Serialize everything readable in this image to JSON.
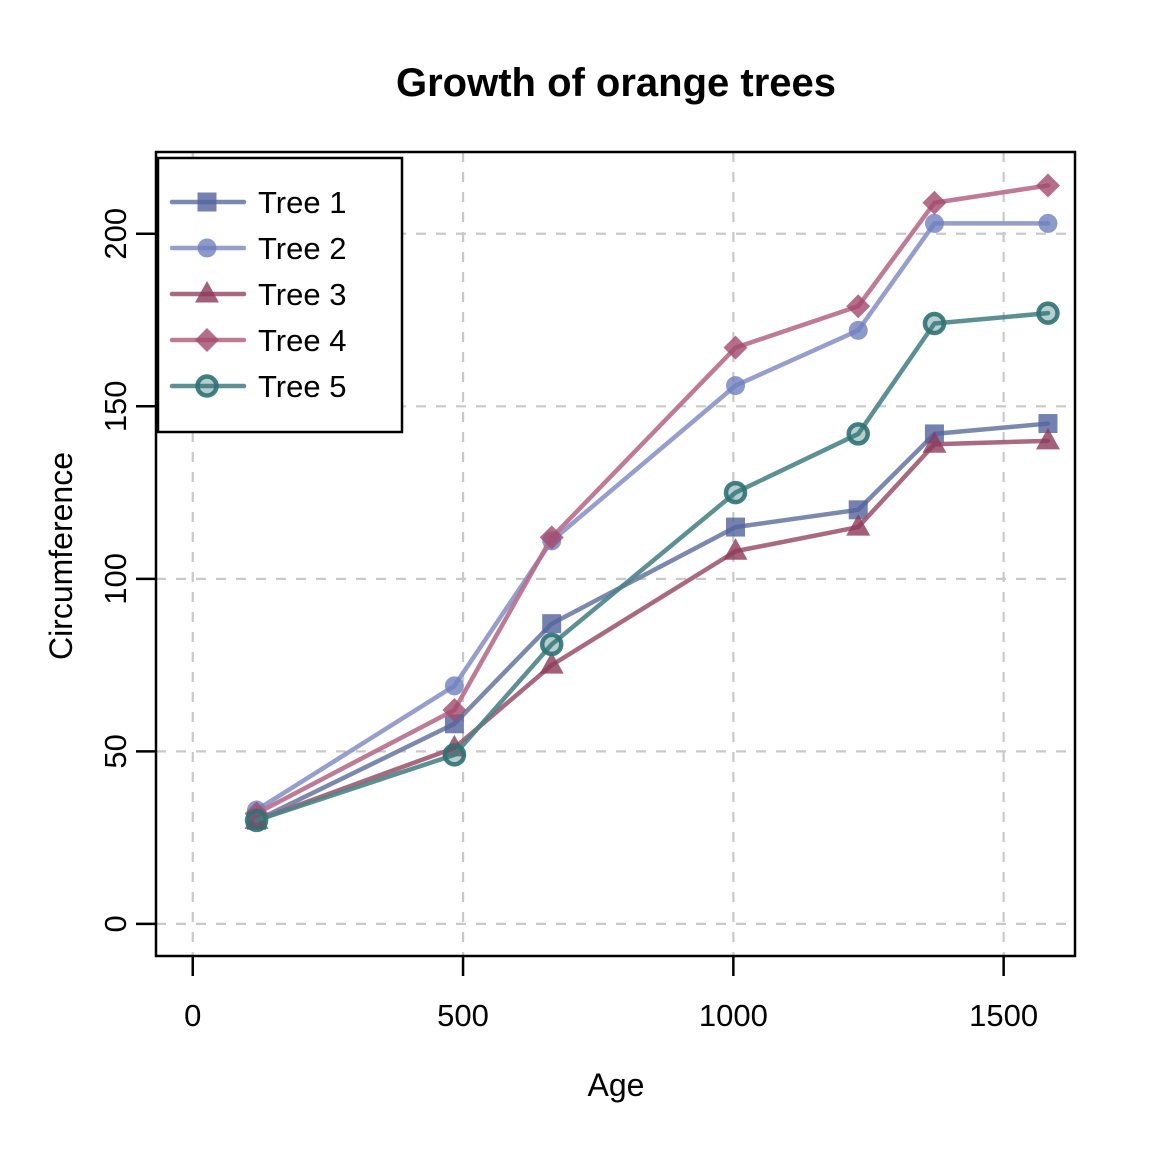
{
  "chart_data": {
    "type": "line",
    "title": "Growth of orange trees",
    "xlabel": "Age",
    "ylabel": "Circumference",
    "x": [
      118,
      484,
      664,
      1004,
      1231,
      1372,
      1582
    ],
    "series": [
      {
        "name": "Tree 1",
        "marker": "square",
        "line_color": "#6e7ca6",
        "marker_color": "#53639c",
        "values": [
          30,
          58,
          87,
          115,
          120,
          142,
          145
        ]
      },
      {
        "name": "Tree 2",
        "marker": "circle",
        "line_color": "#8a94c8",
        "marker_color": "#6f7fbe",
        "values": [
          33,
          69,
          111,
          156,
          172,
          203,
          203
        ]
      },
      {
        "name": "Tree 3",
        "marker": "triangle",
        "line_color": "#a05a72",
        "marker_color": "#8c3a57",
        "values": [
          30,
          51,
          75,
          108,
          115,
          139,
          140
        ]
      },
      {
        "name": "Tree 4",
        "marker": "diamond",
        "line_color": "#b86d89",
        "marker_color": "#a34a6b",
        "values": [
          32,
          62,
          112,
          167,
          179,
          209,
          214
        ]
      },
      {
        "name": "Tree 5",
        "marker": "circle-open",
        "line_color": "#4b8486",
        "marker_color": "#2f7274",
        "values": [
          30,
          49,
          81,
          125,
          142,
          174,
          177
        ]
      }
    ],
    "xticks": [
      0,
      500,
      1000,
      1500
    ],
    "yticks": [
      0,
      50,
      100,
      150,
      200
    ],
    "xlim": [
      -68,
      1632
    ],
    "ylim": [
      -9.3,
      223.7
    ],
    "grid": true,
    "grid_color": "#c9c9c9",
    "axis_color": "#000000",
    "legend_position": "top-left",
    "legend_labels": [
      "Tree 1",
      "Tree 2",
      "Tree 3",
      "Tree 4",
      "Tree 5"
    ]
  }
}
